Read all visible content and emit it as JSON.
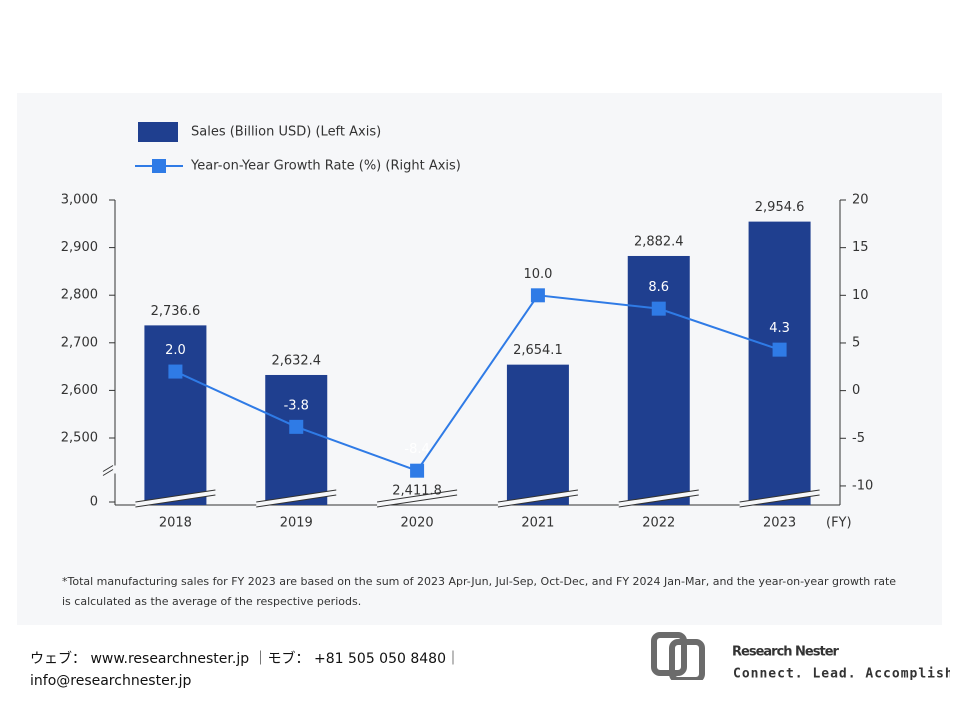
{
  "chart_data": {
    "type": "bar",
    "categories": [
      "2018",
      "2019",
      "2020",
      "2021",
      "2022",
      "2023"
    ],
    "x_label": "(FY)",
    "series": [
      {
        "name": "Sales (Billion USD) (Left Axis)",
        "color": "#1f3f8f",
        "values": [
          2736.6,
          2632.4,
          2411.8,
          2654.1,
          2882.4,
          2954.6
        ],
        "value_labels": [
          "2,736.6",
          "2,632.4",
          "2,411.8",
          "2,654.1",
          "2,882.4",
          "2,954.6"
        ]
      },
      {
        "name": "Year-on-Year Growth Rate (%) (Right Axis)",
        "type": "line",
        "axis": "y2",
        "color": "#2f7be6",
        "values": [
          2.0,
          -3.8,
          -8.4,
          10.0,
          8.6,
          4.3
        ],
        "value_labels": [
          "2.0",
          "-3.8",
          "-8.4",
          "10.0",
          "8.6",
          "4.3"
        ]
      }
    ],
    "ylim": [
      0,
      3000
    ],
    "yticks": [
      0,
      {
        "value": 2500,
        "label": "2,500"
      },
      {
        "value": 2600,
        "label": "2,600"
      },
      {
        "value": 2700,
        "label": "2,700"
      },
      {
        "value": 2800,
        "label": "2,800"
      },
      {
        "value": 2900,
        "label": "2,900"
      },
      {
        "value": 3000,
        "label": "3,000"
      }
    ],
    "axis_break": true,
    "y2lim": [
      -12,
      20
    ],
    "y2ticks": [
      -10,
      -5,
      0,
      5,
      10,
      15,
      20
    ],
    "legend": "top-left",
    "note": "*Total manufacturing sales for FY 2023 are based on the sum of 2023 Apr-Jun, Jul-Sep, Oct-Dec, and FY 2024 Jan-Mar, and the year-on-year growth rate is calculated as the average of the respective periods."
  },
  "footer": {
    "contact": [
      "ウェブ： www.researchnester.jp ｜モブ： +81 505 050 8480｜",
      "info@researchnester.jp"
    ],
    "logo": {
      "name": "Research Nester",
      "tagline": "Connect. Lead. Accomplish"
    }
  }
}
